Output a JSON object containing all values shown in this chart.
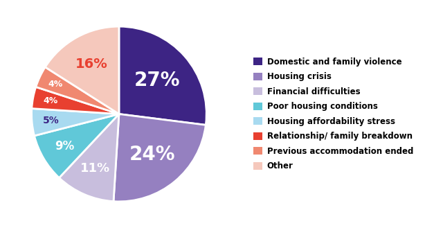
{
  "labels": [
    "Domestic and family violence",
    "Housing crisis",
    "Financial difficulties",
    "Poor housing conditions",
    "Housing affordability stress",
    "Relationship/ family breakdown",
    "Previous accommodation ended",
    "Other"
  ],
  "values": [
    27,
    24,
    11,
    9,
    5,
    4,
    4,
    16
  ],
  "colors": [
    "#3d2484",
    "#9580c0",
    "#c8bedd",
    "#60c8d8",
    "#a8daf0",
    "#e84030",
    "#f08870",
    "#f5c8bc"
  ],
  "pct_labels": [
    "27%",
    "24%",
    "11%",
    "9%",
    "5%",
    "4%",
    "4%",
    "16%"
  ],
  "label_colors": [
    "white",
    "white",
    "white",
    "white",
    "#3d2484",
    "white",
    "white",
    "#e84030"
  ],
  "label_fontsizes": [
    20,
    20,
    13,
    12,
    10,
    9,
    9,
    14
  ],
  "label_radii": [
    0.58,
    0.6,
    0.68,
    0.72,
    0.78,
    0.8,
    0.8,
    0.65
  ],
  "background_color": "#ffffff",
  "legend_labels": [
    "Domestic and family violence",
    "Housing crisis",
    "Financial difficulties",
    "Poor housing conditions",
    "Housing affordability stress",
    "Relationship/ family breakdown",
    "Previous accommodation ended",
    "Other"
  ]
}
